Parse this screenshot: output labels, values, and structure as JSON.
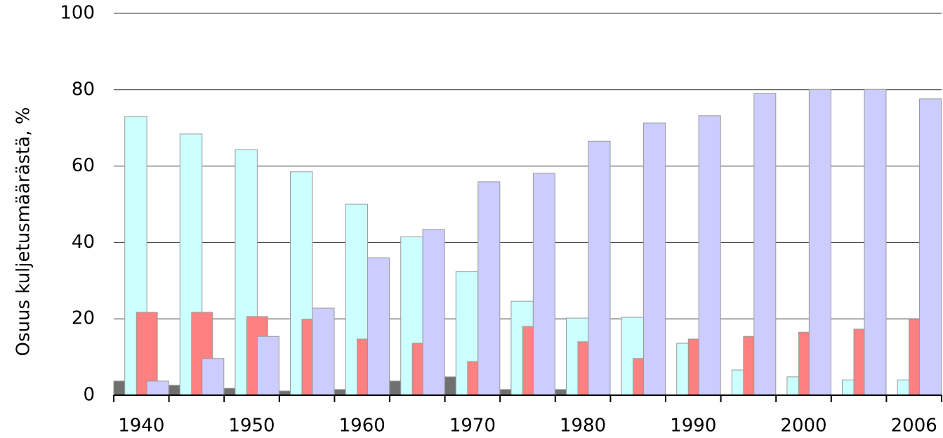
{
  "chart_data": {
    "type": "bar",
    "y_label": "Osuus kuljetusmäärästä, %",
    "categories": [
      "1940",
      null,
      "1950",
      null,
      "1960",
      null,
      "1970",
      null,
      "1980",
      null,
      "1990",
      null,
      "2000",
      null,
      "2006"
    ],
    "series": [
      {
        "color": "#707070",
        "values": [
          3.7,
          2.6,
          1.8,
          1.1,
          1.5,
          3.7,
          4.8,
          1.5,
          1.5,
          0,
          0,
          0,
          0,
          0,
          0
        ]
      },
      {
        "color": "#ccffff",
        "values": [
          73,
          68.4,
          64.3,
          58.5,
          50,
          41.5,
          32.4,
          24.6,
          20.2,
          20.4,
          13.6,
          6.6,
          4.8,
          4,
          4
        ]
      },
      {
        "color": "#ff8080",
        "values": [
          21.7,
          21.7,
          20.6,
          19.9,
          14.7,
          13.6,
          8.8,
          18,
          14,
          9.6,
          14.7,
          15.4,
          16.5,
          17.3,
          19.9
        ]
      },
      {
        "color": "#ccccff",
        "values": [
          3.7,
          9.6,
          15.4,
          22.8,
          36,
          43.4,
          55.9,
          58.1,
          66.5,
          71.3,
          73.2,
          79,
          80.1,
          80.1,
          77.6
        ]
      }
    ],
    "ylim": [
      0,
      100
    ],
    "yticks": [
      0,
      20,
      40,
      60,
      80,
      100
    ],
    "grid": true
  }
}
